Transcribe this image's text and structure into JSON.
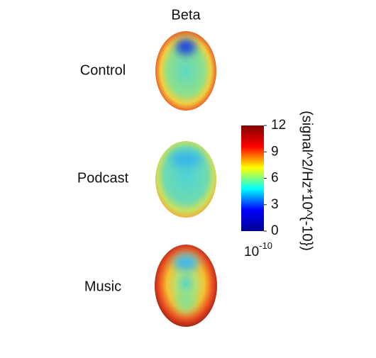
{
  "chart_data": {
    "type": "topomap",
    "title": "Beta",
    "rows": [
      "Control",
      "Podcast",
      "Music"
    ],
    "colorbar": {
      "lim": [
        0,
        12
      ],
      "ticks": [
        0,
        3,
        6,
        9,
        12
      ],
      "colors": [
        "#00008f",
        "#0000ff",
        "#00ffff",
        "#ffff00",
        "#ff0000",
        "#800000"
      ],
      "label": "(signal^2/Hz*10^{-10})",
      "scale_base": "10",
      "scale_exponent": "-10"
    }
  }
}
